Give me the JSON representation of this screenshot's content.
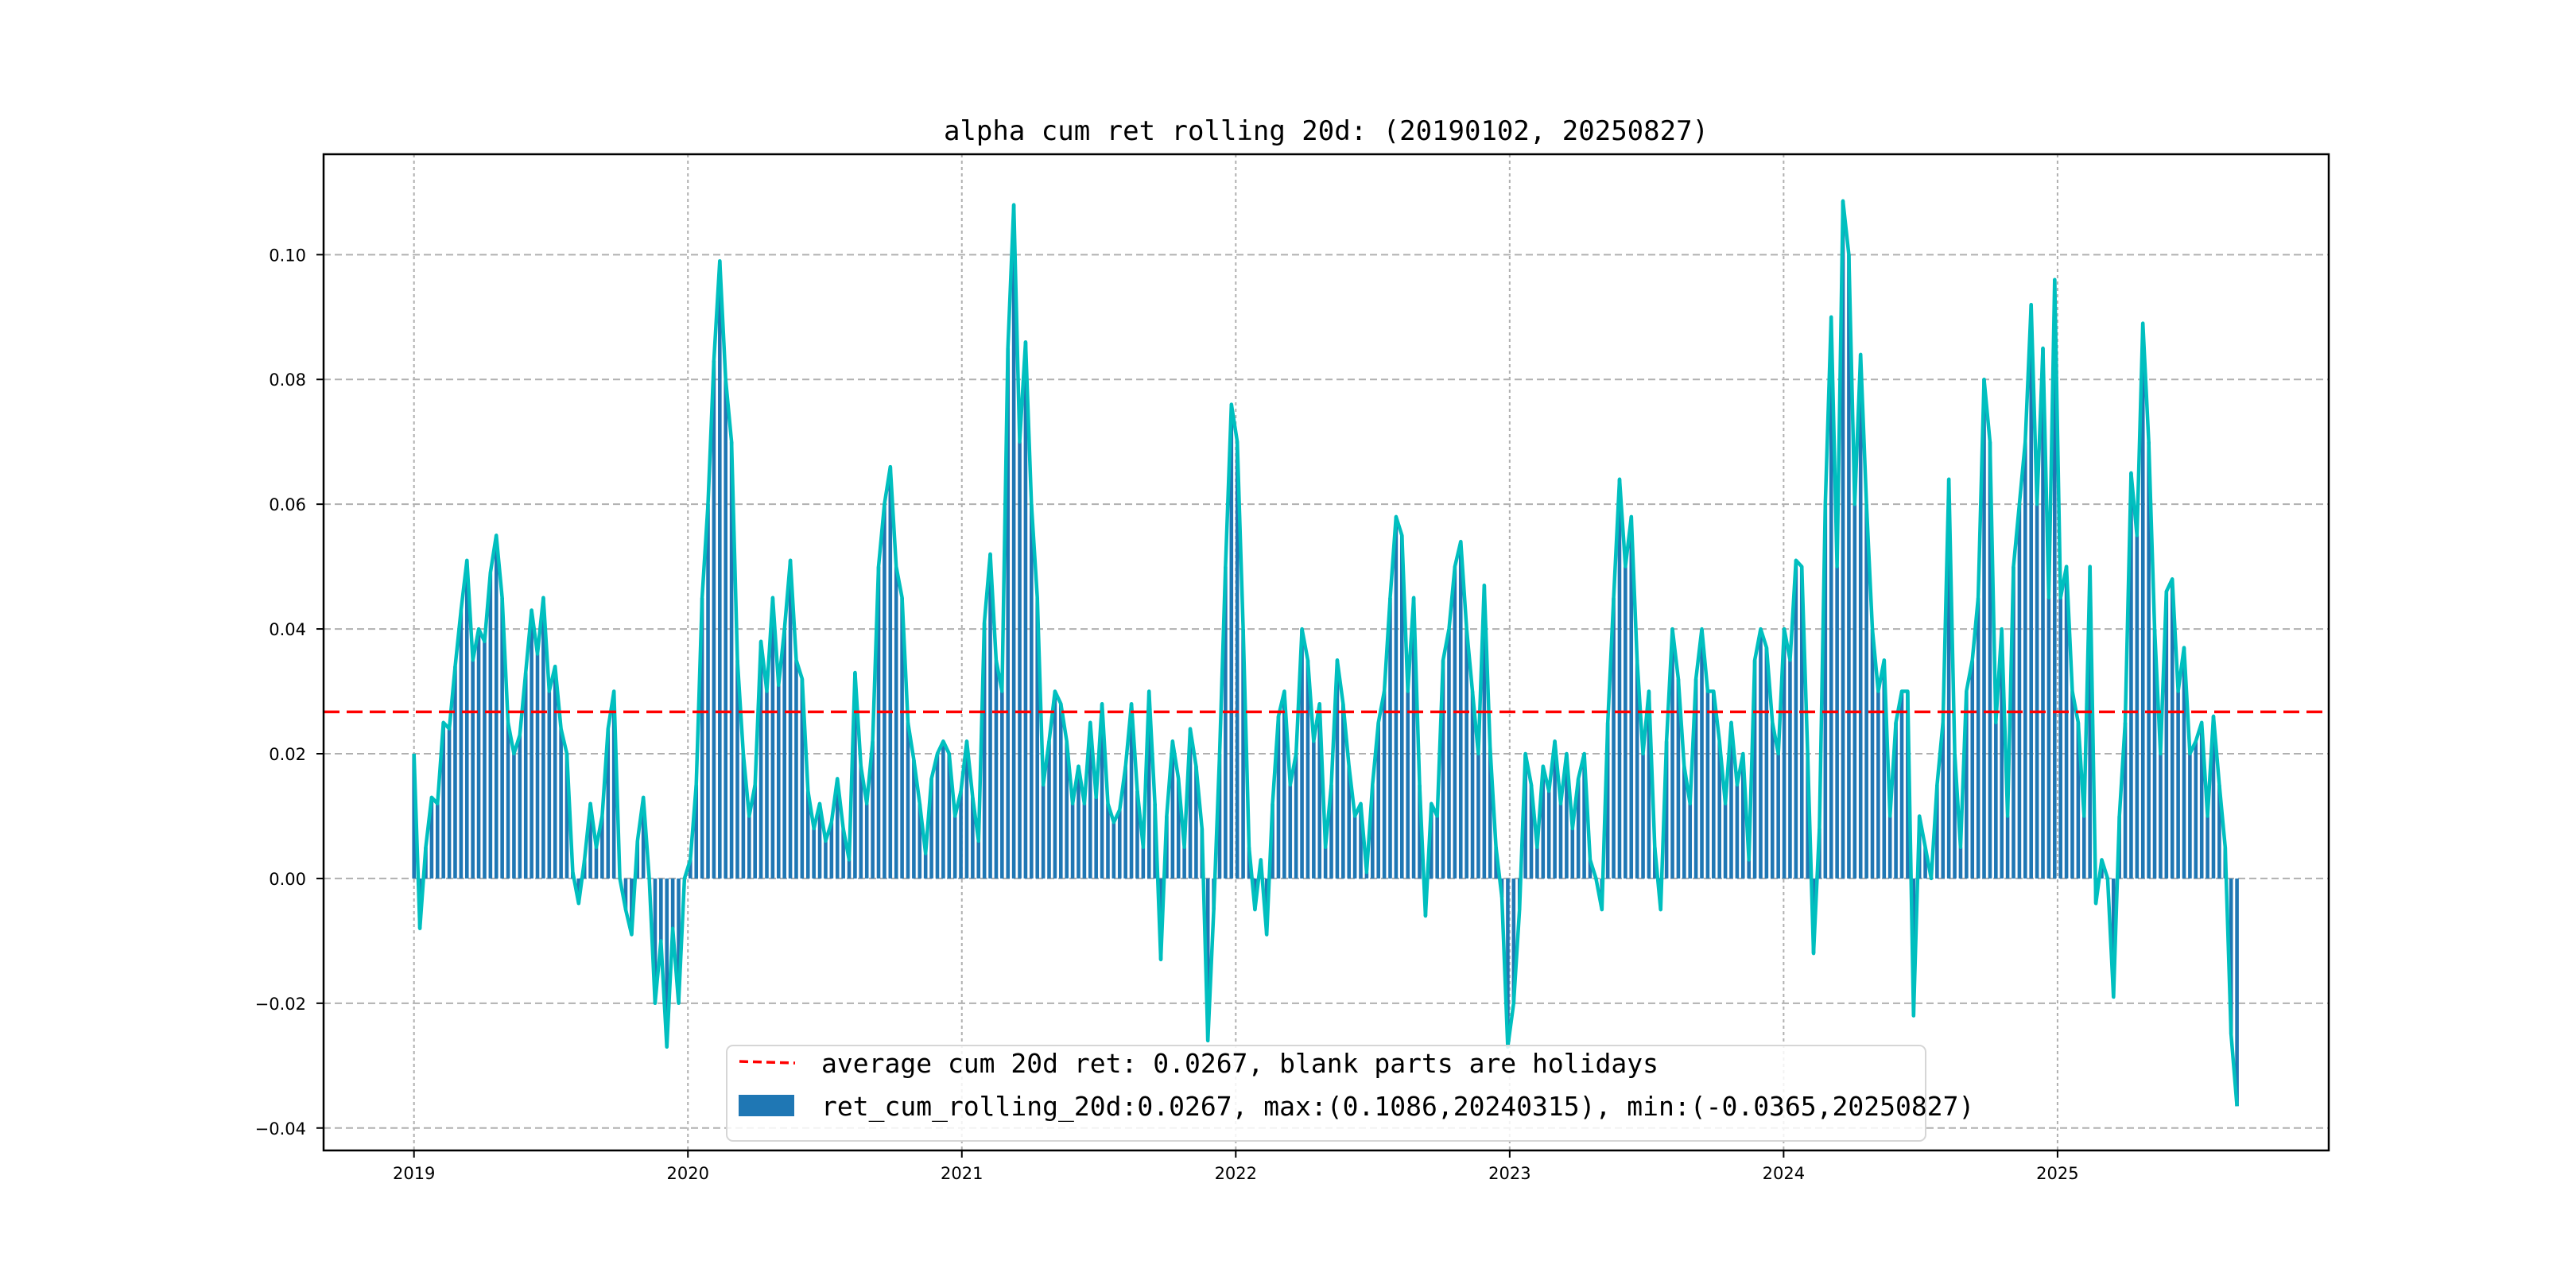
{
  "chart_data": {
    "type": "bar",
    "title": "alpha cum ret rolling 20d: (20190102, 20250827)",
    "xlabel": "",
    "ylabel": "",
    "start_date": "2019-01-02",
    "end_date": "2025-08-27",
    "xlim": [
      2018.67,
      2025.99
    ],
    "ylim": [
      -0.0436,
      0.1161
    ],
    "grid": true,
    "legend_position": "bottom-center",
    "x_ticks": [
      "2019",
      "2020",
      "2021",
      "2022",
      "2023",
      "2024",
      "2025"
    ],
    "y_ticks": [
      {
        "value": 0.1,
        "label": "0.10"
      },
      {
        "value": 0.08,
        "label": "0.08"
      },
      {
        "value": 0.06,
        "label": "0.06"
      },
      {
        "value": 0.04,
        "label": "0.04"
      },
      {
        "value": 0.02,
        "label": "0.02"
      },
      {
        "value": 0.0,
        "label": "0.00"
      },
      {
        "value": -0.02,
        "label": "−0.02"
      },
      {
        "value": -0.04,
        "label": "−0.04"
      }
    ],
    "average": 0.0267,
    "max": {
      "value": 0.1086,
      "date": "20240315"
    },
    "min": {
      "value": -0.0365,
      "date": "20250827"
    },
    "colors": {
      "bars": "#1f77b4",
      "line": "#00bfbf",
      "average": "#ff0000",
      "grid": "#b0b0b0"
    },
    "series": [
      {
        "name": "ret_cum_rolling_20d",
        "values": [
          0.02,
          -0.008,
          0.005,
          0.013,
          0.012,
          0.025,
          0.024,
          0.034,
          0.043,
          0.051,
          0.035,
          0.04,
          0.038,
          0.049,
          0.055,
          0.045,
          0.025,
          0.02,
          0.023,
          0.033,
          0.043,
          0.036,
          0.045,
          0.03,
          0.034,
          0.024,
          0.02,
          0.001,
          -0.004,
          0.003,
          0.012,
          0.005,
          0.01,
          0.024,
          0.03,
          0.0,
          -0.005,
          -0.009,
          0.006,
          0.013,
          0.0,
          -0.02,
          -0.01,
          -0.027,
          -0.008,
          -0.02,
          0.0,
          0.003,
          0.015,
          0.045,
          0.06,
          0.083,
          0.099,
          0.08,
          0.07,
          0.035,
          0.02,
          0.01,
          0.015,
          0.038,
          0.03,
          0.045,
          0.031,
          0.04,
          0.051,
          0.035,
          0.032,
          0.014,
          0.008,
          0.012,
          0.006,
          0.009,
          0.016,
          0.008,
          0.003,
          0.033,
          0.018,
          0.012,
          0.022,
          0.05,
          0.06,
          0.066,
          0.05,
          0.045,
          0.025,
          0.019,
          0.012,
          0.004,
          0.016,
          0.02,
          0.022,
          0.02,
          0.01,
          0.014,
          0.022,
          0.013,
          0.006,
          0.041,
          0.052,
          0.035,
          0.03,
          0.085,
          0.108,
          0.07,
          0.086,
          0.06,
          0.045,
          0.015,
          0.022,
          0.03,
          0.028,
          0.022,
          0.012,
          0.018,
          0.012,
          0.025,
          0.013,
          0.028,
          0.012,
          0.009,
          0.011,
          0.018,
          0.028,
          0.014,
          0.005,
          0.03,
          0.012,
          -0.013,
          0.01,
          0.022,
          0.016,
          0.005,
          0.024,
          0.018,
          0.008,
          -0.026,
          -0.005,
          0.02,
          0.05,
          0.076,
          0.07,
          0.04,
          0.005,
          -0.005,
          0.003,
          -0.009,
          0.012,
          0.026,
          0.03,
          0.015,
          0.02,
          0.04,
          0.035,
          0.022,
          0.028,
          0.005,
          0.015,
          0.035,
          0.028,
          0.018,
          0.01,
          0.012,
          0.001,
          0.015,
          0.025,
          0.03,
          0.045,
          0.058,
          0.055,
          0.03,
          0.045,
          0.015,
          -0.006,
          0.012,
          0.01,
          0.035,
          0.04,
          0.05,
          0.054,
          0.04,
          0.03,
          0.02,
          0.047,
          0.021,
          0.005,
          -0.003,
          -0.027,
          -0.02,
          -0.005,
          0.02,
          0.015,
          0.005,
          0.018,
          0.014,
          0.022,
          0.012,
          0.02,
          0.008,
          0.016,
          0.02,
          0.003,
          0.0,
          -0.005,
          0.025,
          0.045,
          0.064,
          0.05,
          0.058,
          0.035,
          0.02,
          0.03,
          0.005,
          -0.005,
          0.022,
          0.04,
          0.032,
          0.018,
          0.012,
          0.032,
          0.04,
          0.03,
          0.03,
          0.022,
          0.012,
          0.025,
          0.015,
          0.02,
          0.003,
          0.035,
          0.04,
          0.037,
          0.025,
          0.02,
          0.04,
          0.035,
          0.051,
          0.05,
          0.02,
          -0.012,
          0.008,
          0.06,
          0.09,
          0.05,
          0.1086,
          0.1,
          0.06,
          0.084,
          0.06,
          0.04,
          0.03,
          0.035,
          0.01,
          0.025,
          0.03,
          0.03,
          -0.022,
          0.01,
          0.005,
          0.0,
          0.015,
          0.025,
          0.064,
          0.02,
          0.005,
          0.03,
          0.035,
          0.045,
          0.08,
          0.07,
          0.025,
          0.04,
          0.01,
          0.05,
          0.06,
          0.07,
          0.092,
          0.06,
          0.085,
          0.045,
          0.096,
          0.045,
          0.05,
          0.03,
          0.025,
          0.01,
          0.05,
          -0.004,
          0.003,
          0.0,
          -0.019,
          0.01,
          0.025,
          0.065,
          0.055,
          0.089,
          0.07,
          0.04,
          0.02,
          0.046,
          0.048,
          0.03,
          0.037,
          0.02,
          0.022,
          0.025,
          0.01,
          0.026,
          0.015,
          0.005,
          -0.025,
          -0.0365
        ]
      }
    ],
    "legend": [
      {
        "type": "dashed-line",
        "label": "average cum 20d ret: 0.0267, blank parts are holidays"
      },
      {
        "type": "patch",
        "label": "ret_cum_rolling_20d:0.0267, max:(0.1086,20240315), min:(-0.0365,20250827)"
      }
    ]
  }
}
